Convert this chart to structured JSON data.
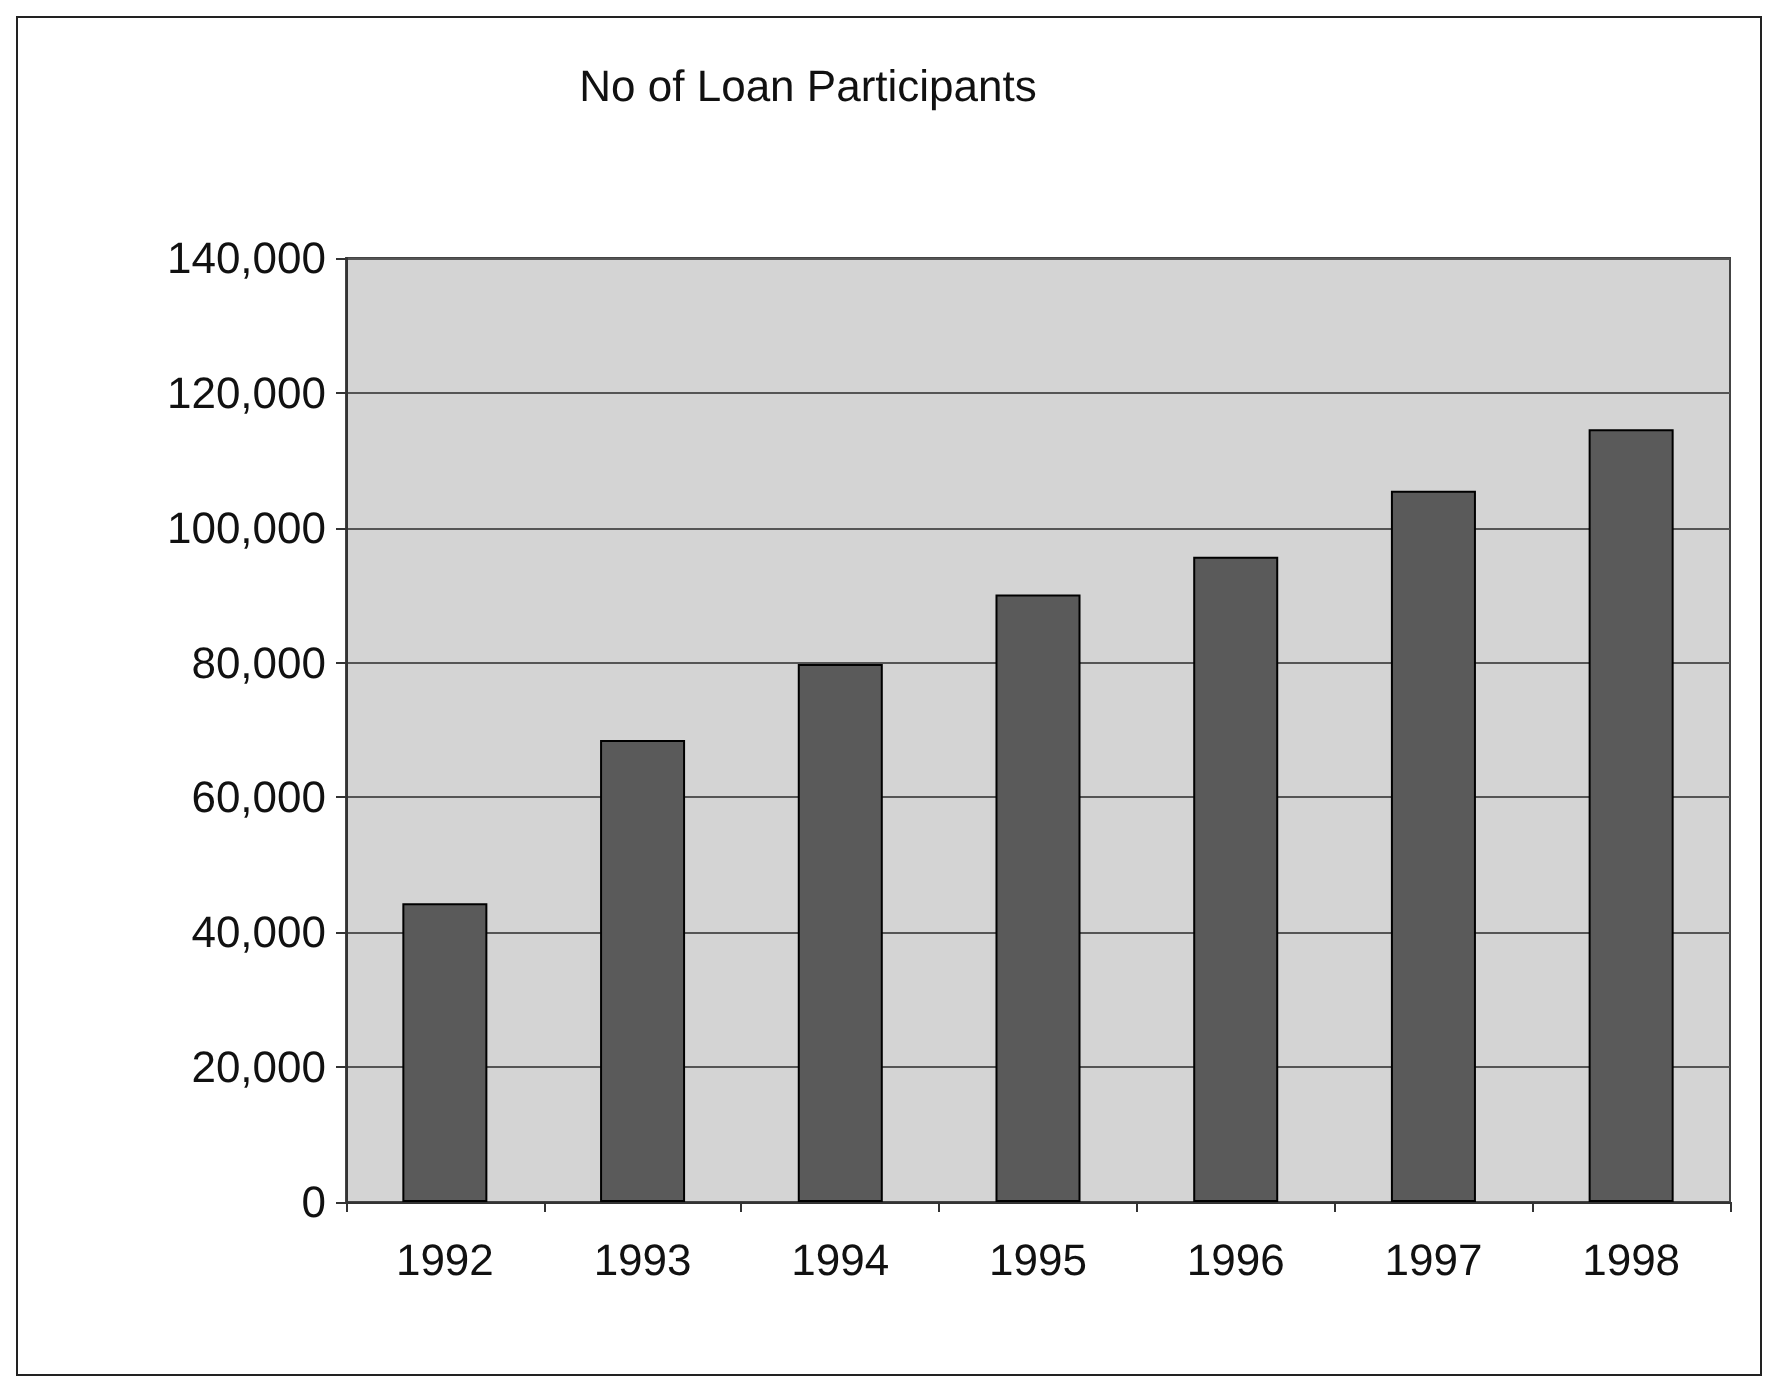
{
  "chart_data": {
    "type": "bar",
    "title": "No of Loan Participants",
    "categories": [
      "1992",
      "1993",
      "1994",
      "1995",
      "1996",
      "1997",
      "1998"
    ],
    "values": [
      44300,
      68500,
      79800,
      90100,
      95700,
      105500,
      114600
    ],
    "color": "#5a5a5a",
    "ylim": [
      0,
      140000
    ],
    "yticks": [
      0,
      {
        "value": 20000,
        "label": "20,000"
      },
      {
        "value": 40000,
        "label": "40,000"
      },
      {
        "value": 60000,
        "label": "60,000"
      },
      {
        "value": 80000,
        "label": "80,000"
      },
      {
        "value": 100000,
        "label": "100,000"
      },
      {
        "value": 120000,
        "label": "120,000"
      },
      {
        "value": 140000,
        "label": "140,000"
      }
    ],
    "grid": "y"
  }
}
